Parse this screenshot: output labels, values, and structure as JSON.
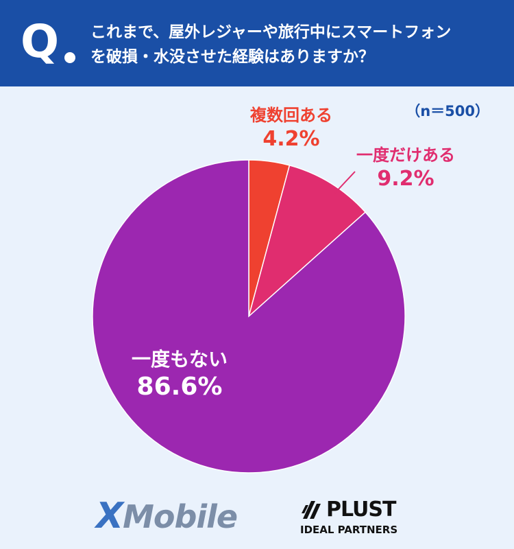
{
  "header": {
    "q_mark": "Q",
    "question_line1": "これまで、屋外レジャーや旅行中にスマートフォン",
    "question_line2": "を破損・水没させた経験はありますか？"
  },
  "sample_size": "（n＝500）",
  "chart_data": {
    "type": "pie",
    "slices": [
      {
        "label": "複数回ある",
        "value": 4.2,
        "value_label": "4.2%",
        "color": "#ef4130"
      },
      {
        "label": "一度だけある",
        "value": 9.2,
        "value_label": "9.2%",
        "color": "#e02d6f"
      },
      {
        "label": "一度もない",
        "value": 86.6,
        "value_label": "86.6%",
        "color": "#9c27b0"
      }
    ]
  },
  "logos": {
    "xmobile_x": "X",
    "xmobile_rest": "Mobile",
    "plust_name": "PLUST",
    "plust_sub": "IDEAL PARTNERS"
  }
}
